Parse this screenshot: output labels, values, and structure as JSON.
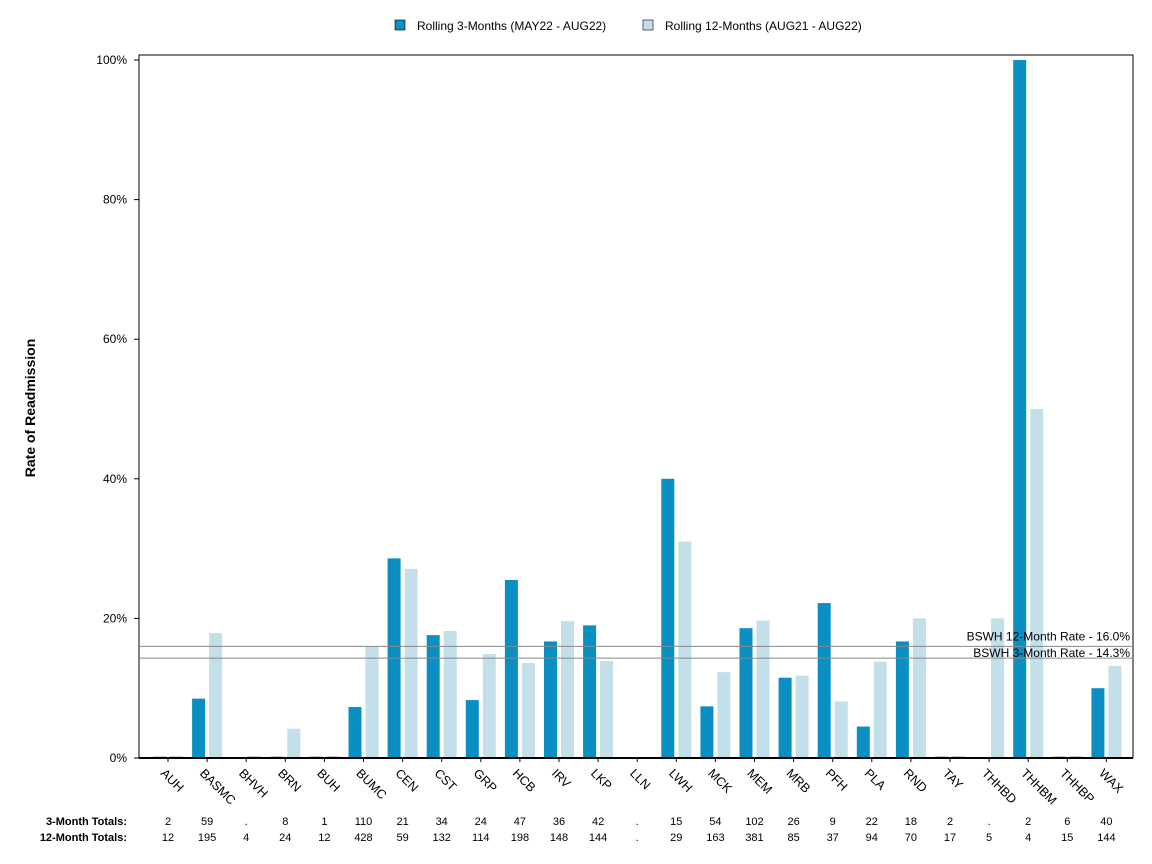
{
  "chart_data": {
    "type": "bar",
    "ylabel": "Rate of Readmission",
    "ylim": [
      0,
      100
    ],
    "yticks": [
      "0%",
      "20%",
      "40%",
      "60%",
      "80%",
      "100%"
    ],
    "categories": [
      "AUH",
      "BASMC",
      "BHVH",
      "BRN",
      "BUH",
      "BUMC",
      "CEN",
      "CST",
      "GRP",
      "HCB",
      "IRV",
      "LKP",
      "LLN",
      "LWH",
      "MCK",
      "MEM",
      "MRB",
      "PFH",
      "PLA",
      "RND",
      "TAY",
      "THHBD",
      "THHBM",
      "THHBP",
      "WAX"
    ],
    "series": [
      {
        "name": "Rolling 3-Months (MAY22 - AUG22)",
        "color": "#0a8fc2",
        "values": [
          0,
          8.5,
          null,
          0,
          0,
          7.3,
          28.6,
          17.6,
          8.3,
          25.5,
          16.7,
          19.0,
          null,
          40.0,
          7.4,
          18.6,
          11.5,
          22.2,
          4.5,
          16.7,
          0,
          null,
          100.0,
          0,
          10.0
        ]
      },
      {
        "name": "Rolling 12-Months (AUG21 - AUG22)",
        "color": "#c2dfea",
        "values": [
          0,
          17.9,
          0,
          4.2,
          0,
          15.9,
          27.1,
          18.2,
          14.9,
          13.6,
          19.6,
          13.9,
          null,
          31.0,
          12.3,
          19.7,
          11.8,
          8.1,
          13.8,
          20.0,
          0,
          20.0,
          50.0,
          0,
          13.2
        ]
      }
    ],
    "reference_lines": [
      {
        "label": "BSWH 12-Month Rate - 16.0%",
        "value": 16.0
      },
      {
        "label": "BSWH  3-Month Rate - 14.3%",
        "value": 14.3
      }
    ],
    "legend_position": "top-center",
    "grid": false,
    "totals": {
      "three_month_label": "3-Month Totals:",
      "twelve_month_label": "12-Month Totals:",
      "three_month": [
        "2",
        "59",
        ".",
        "8",
        "1",
        "110",
        "21",
        "34",
        "24",
        "47",
        "36",
        "42",
        ".",
        "15",
        "54",
        "102",
        "26",
        "9",
        "22",
        "18",
        "2",
        ".",
        "2",
        "6",
        "40"
      ],
      "twelve_month": [
        "12",
        "195",
        "4",
        "24",
        "12",
        "428",
        "59",
        "132",
        "114",
        "198",
        "148",
        "144",
        ".",
        "29",
        "163",
        "381",
        "85",
        "37",
        "94",
        "70",
        "17",
        "5",
        "4",
        "15",
        "144"
      ]
    }
  }
}
